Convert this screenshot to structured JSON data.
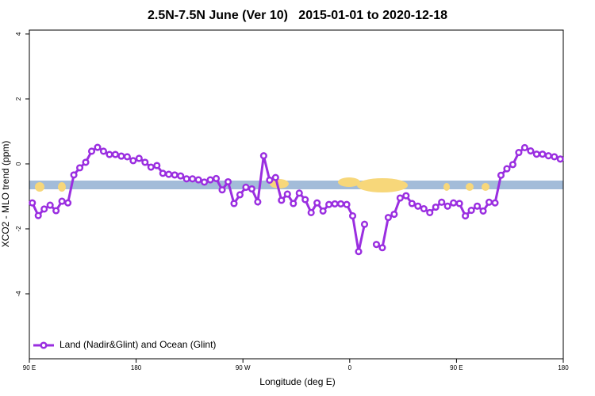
{
  "chart_data": {
    "type": "line",
    "title": "2.5N-7.5N June (Ver 10)   2015-01-01 to 2020-12-18",
    "xlabel": "Longitude (deg E)",
    "ylabel": "XCO2 - MLO trend (ppm)",
    "legend": "bottom-left",
    "xlim": [
      90,
      540
    ],
    "ylim": [
      -6,
      4.12
    ],
    "xticks": [
      {
        "value": 90,
        "label": "90 E"
      },
      180,
      {
        "value": 270,
        "label": "90 W"
      },
      {
        "value": 360,
        "label": "0"
      },
      {
        "value": 450,
        "label": "90 E"
      },
      {
        "value": 540,
        "label": "180"
      }
    ],
    "yticks": [
      4,
      2,
      0,
      -2,
      -4
    ],
    "x": [
      92.5,
      97.5,
      102.5,
      107.5,
      112.5,
      117.5,
      122.5,
      127.5,
      132.5,
      137.5,
      142.5,
      147.5,
      152.5,
      157.5,
      162.5,
      167.5,
      172.5,
      177.5,
      182.5,
      187.5,
      192.5,
      197.5,
      202.5,
      207.5,
      212.5,
      217.5,
      222.5,
      227.5,
      232.5,
      237.5,
      242.5,
      247.5,
      252.5,
      257.5,
      262.5,
      267.5,
      272.5,
      277.5,
      282.5,
      287.5,
      292.5,
      297.5,
      302.5,
      307.5,
      312.5,
      317.5,
      322.5,
      327.5,
      332.5,
      337.5,
      342.5,
      347.5,
      352.5,
      357.5,
      362.5,
      367.5,
      372.5,
      377.5,
      382.5,
      387.5,
      392.5,
      397.5,
      402.5,
      407.5,
      412.5,
      417.5,
      422.5,
      427.5,
      432.5,
      437.5,
      442.5,
      447.5,
      452.5,
      457.5,
      462.5,
      467.5,
      472.5,
      477.5,
      482.5,
      487.5,
      492.5,
      497.5,
      502.5,
      507.5,
      512.5,
      517.5,
      522.5,
      527.5,
      532.5,
      537.5
    ],
    "series": [
      {
        "name": "Land (Nadir&Glint) and Ocean (Glint)",
        "color": "#9a2ee0",
        "values": [
          -1.2,
          -1.59,
          -1.39,
          -1.27,
          -1.44,
          -1.15,
          -1.2,
          -0.34,
          -0.12,
          0.05,
          0.39,
          0.51,
          0.39,
          0.29,
          0.29,
          0.24,
          0.22,
          0.1,
          0.17,
          0.05,
          -0.1,
          -0.05,
          -0.29,
          -0.32,
          -0.34,
          -0.37,
          -0.46,
          -0.46,
          -0.49,
          -0.56,
          -0.49,
          -0.45,
          -0.8,
          -0.55,
          -1.22,
          -0.95,
          -0.72,
          -0.77,
          -1.17,
          0.25,
          -0.5,
          -0.42,
          -1.12,
          -0.93,
          -1.22,
          -0.9,
          -1.1,
          -1.5,
          -1.2,
          -1.45,
          -1.25,
          -1.23,
          -1.23,
          -1.25,
          -1.6,
          -2.7,
          -1.86,
          null,
          -2.48,
          -2.58,
          -1.65,
          -1.55,
          -1.05,
          -0.98,
          -1.22,
          -1.3,
          -1.38,
          -1.5,
          -1.33,
          -1.18,
          -1.3,
          -1.2,
          -1.22,
          -1.6,
          -1.43,
          -1.3,
          -1.45,
          -1.18,
          -1.2,
          -0.35,
          -0.15,
          -0.02,
          0.35,
          0.5,
          0.4,
          0.3,
          0.3,
          0.25,
          0.22,
          0.15
        ]
      }
    ]
  }
}
